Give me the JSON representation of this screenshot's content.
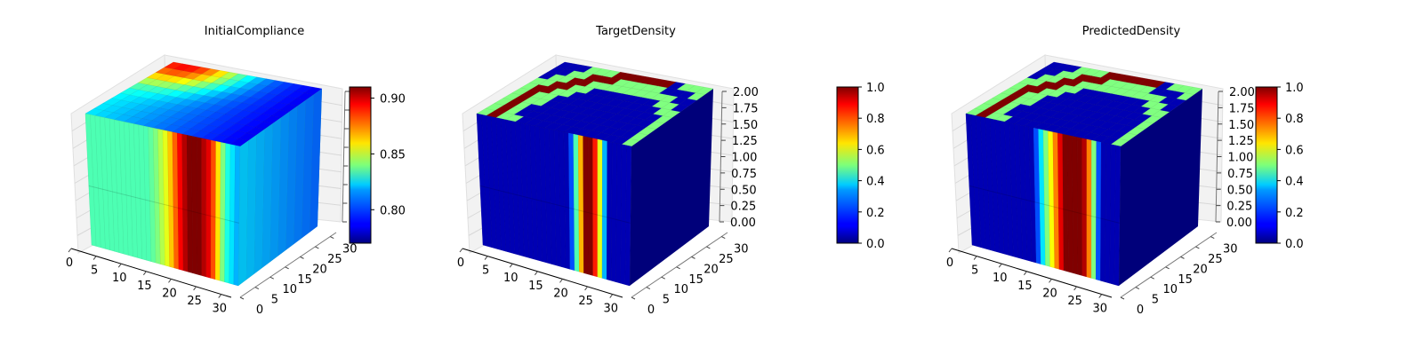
{
  "chart_data": [
    {
      "type": "voxel3d",
      "title": "InitialCompliance",
      "colormap": "jet",
      "x_ticks": [
        "0",
        "5",
        "10",
        "15",
        "20",
        "25",
        "30"
      ],
      "y_ticks": [
        "0",
        "5",
        "10",
        "15",
        "20",
        "25",
        "30"
      ],
      "z_ticks": [],
      "xlim": [
        0,
        32
      ],
      "ylim": [
        0,
        32
      ],
      "colorbar": {
        "ticks": [
          "0.80",
          "0.85",
          "0.90"
        ],
        "clim": [
          0.77,
          0.91
        ]
      },
      "front_stripes": [
        0.45,
        0.45,
        0.45,
        0.45,
        0.45,
        0.45,
        0.45,
        0.45,
        0.45,
        0.45,
        0.45,
        0.45,
        0.45,
        0.47,
        0.5,
        0.55,
        0.6,
        0.68,
        0.78,
        0.88,
        0.95,
        1.0,
        1.0,
        1.0,
        0.95,
        0.9,
        0.8,
        0.65,
        0.5,
        0.4,
        0.35,
        0.3
      ]
    },
    {
      "type": "voxel3d",
      "title": "TargetDensity",
      "colormap": "jet",
      "x_ticks": [
        "0",
        "5",
        "10",
        "15",
        "20",
        "25",
        "30"
      ],
      "y_ticks": [
        "0",
        "5",
        "10",
        "15",
        "20",
        "25",
        "30"
      ],
      "z_ticks": [
        "0.00",
        "0.25",
        "0.50",
        "0.75",
        "1.00",
        "1.25",
        "1.50",
        "1.75",
        "2.00"
      ],
      "xlim": [
        0,
        32
      ],
      "ylim": [
        0,
        32
      ],
      "zlim": [
        0,
        2
      ],
      "colorbar": {
        "ticks": [
          "0.0",
          "0.2",
          "0.4",
          "0.6",
          "0.8",
          "1.0"
        ],
        "clim": [
          0,
          1
        ]
      },
      "front_stripes": [
        0.05,
        0.05,
        0.05,
        0.05,
        0.05,
        0.05,
        0.05,
        0.05,
        0.05,
        0.05,
        0.05,
        0.05,
        0.05,
        0.05,
        0.05,
        0.05,
        0.05,
        0.05,
        0.05,
        0.2,
        0.45,
        0.7,
        1.0,
        1.0,
        0.85,
        0.6,
        0.3,
        0.05,
        0.05,
        0.05,
        0.05,
        0.05
      ]
    },
    {
      "type": "voxel3d",
      "title": "PredictedDensity",
      "colormap": "jet",
      "x_ticks": [
        "0",
        "5",
        "10",
        "15",
        "20",
        "25",
        "30"
      ],
      "y_ticks": [
        "0",
        "5",
        "10",
        "15",
        "20",
        "25",
        "30"
      ],
      "z_ticks": [
        "0.00",
        "0.25",
        "0.50",
        "0.75",
        "1.00",
        "1.25",
        "1.50",
        "1.75",
        "2.00"
      ],
      "xlim": [
        0,
        32
      ],
      "ylim": [
        0,
        32
      ],
      "zlim": [
        0,
        2
      ],
      "colorbar": {
        "ticks": [
          "0.0",
          "0.2",
          "0.4",
          "0.6",
          "0.8",
          "1.0"
        ],
        "clim": [
          0,
          1
        ]
      },
      "front_stripes": [
        0.05,
        0.05,
        0.05,
        0.05,
        0.05,
        0.05,
        0.05,
        0.05,
        0.05,
        0.05,
        0.05,
        0.05,
        0.05,
        0.05,
        0.2,
        0.35,
        0.5,
        0.62,
        0.75,
        0.9,
        1.0,
        1.0,
        1.0,
        1.0,
        0.95,
        0.75,
        0.5,
        0.2,
        0.05,
        0.05,
        0.05,
        0.05
      ]
    }
  ]
}
